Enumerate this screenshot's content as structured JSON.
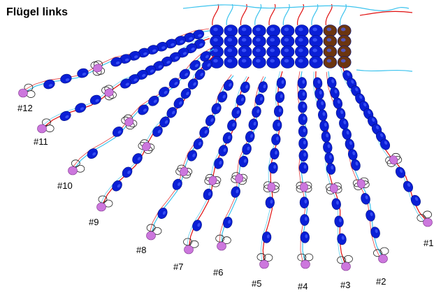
{
  "title": "Flügel links",
  "colors": {
    "bead": "#0a1fd6",
    "bead_highlight": "#4a63ff",
    "accent_bead": "#6b3510",
    "end_bead": "#cc77dd",
    "thread_red": "#e01010",
    "thread_cyan": "#3cc3ee",
    "loop_outline": "#222222"
  },
  "grid": {
    "rows": 4,
    "cols": 10,
    "accent_cols": 2
  },
  "strands": [
    {
      "label": "#1",
      "beads": 10
    },
    {
      "label": "#2",
      "beads": 9
    },
    {
      "label": "#3",
      "beads": 9
    },
    {
      "label": "#4",
      "beads": 8
    },
    {
      "label": "#5",
      "beads": 7
    },
    {
      "label": "#6",
      "beads": 7
    },
    {
      "label": "#7",
      "beads": 7
    },
    {
      "label": "#8",
      "beads": 7
    },
    {
      "label": "#9",
      "beads": 8
    },
    {
      "label": "#10",
      "beads": 7
    },
    {
      "label": "#11",
      "beads": 10
    },
    {
      "label": "#12",
      "beads": 10
    }
  ]
}
